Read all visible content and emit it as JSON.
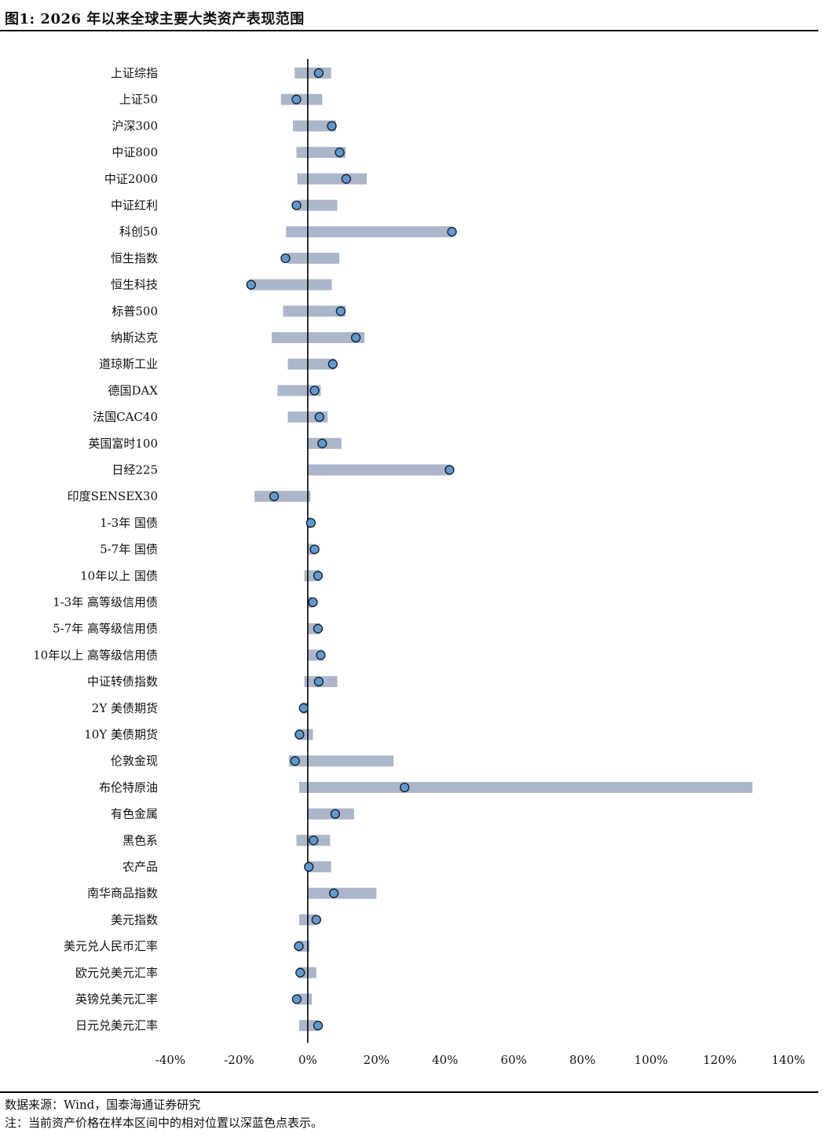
{
  "header": {
    "title": "图1:  2026 年以来全球主要大类资产表现范围"
  },
  "footer": {
    "source": "数据来源：Wind，国泰海通证券研究",
    "note": "注：当前资产价格在样本区间中的相对位置以深蓝色点表示。"
  },
  "colors": {
    "range_bar": "#aab6c9",
    "dot_fill": "#5b9bd5",
    "dot_stroke": "#1a1a1a",
    "axis": "#000000"
  },
  "chart_data": {
    "type": "range-dot",
    "xlim": [
      -40,
      140
    ],
    "x_ticks": [
      -40,
      -20,
      0,
      20,
      40,
      60,
      80,
      100,
      120,
      140
    ],
    "x_tick_labels": [
      "-40%",
      "-20%",
      "0%",
      "20%",
      "40%",
      "60%",
      "80%",
      "100%",
      "120%",
      "140%"
    ],
    "categories": [
      "上证综指",
      "上证50",
      "沪深300",
      "中证800",
      "中证2000",
      "中证红利",
      "科创50",
      "恒生指数",
      "恒生科技",
      "标普500",
      "纳斯达克",
      "道琼斯工业",
      "德国DAX",
      "法国CAC40",
      "英国富时100",
      "日经225",
      "印度SENSEX30",
      "1-3年 国债",
      "5-7年 国债",
      "10年以上 国债",
      "1-3年 高等级信用债",
      "5-7年 高等级信用债",
      "10年以上 高等级信用债",
      "中证转债指数",
      "2Y 美债期货",
      "10Y 美债期货",
      "伦敦金现",
      "布伦特原油",
      "有色金属",
      "黑色系",
      "农产品",
      "南华商品指数",
      "美元指数",
      "美元兑人民币汇率",
      "欧元兑美元汇率",
      "英镑兑美元汇率",
      "日元兑美元汇率"
    ],
    "low": [
      -3.8,
      -7.8,
      -4.3,
      -3.3,
      -3.0,
      -2.8,
      -6.3,
      -5.8,
      -17.0,
      -7.2,
      -10.5,
      -5.8,
      -8.8,
      -5.8,
      -0.2,
      0.0,
      -15.5,
      0.0,
      0.0,
      -1.0,
      0.0,
      0.0,
      0.0,
      -1.0,
      -1.8,
      -3.0,
      -5.5,
      -2.5,
      0.0,
      -3.3,
      0.0,
      0.0,
      -2.5,
      -3.0,
      -2.8,
      -3.0,
      -2.5
    ],
    "high": [
      6.8,
      4.2,
      8.2,
      11.0,
      17.2,
      8.6,
      42.0,
      9.2,
      7.0,
      11.0,
      16.5,
      8.0,
      3.8,
      5.8,
      9.8,
      41.5,
      0.8,
      0.8,
      1.5,
      3.5,
      1.5,
      3.5,
      4.5,
      8.6,
      0.0,
      1.5,
      25.0,
      129.5,
      13.5,
      6.5,
      6.8,
      20.0,
      2.5,
      0.5,
      2.5,
      1.2,
      2.8
    ],
    "current": [
      3.2,
      -3.3,
      7.0,
      9.3,
      11.2,
      -3.3,
      42.0,
      -6.5,
      -16.5,
      9.6,
      14.0,
      7.3,
      2.0,
      3.4,
      4.2,
      41.3,
      -9.8,
      0.9,
      2.0,
      3.0,
      1.5,
      3.0,
      3.8,
      3.2,
      -1.2,
      -2.4,
      -3.7,
      28.2,
      8.0,
      1.7,
      0.3,
      7.6,
      2.5,
      -2.6,
      -2.2,
      -3.2,
      3.0
    ]
  }
}
